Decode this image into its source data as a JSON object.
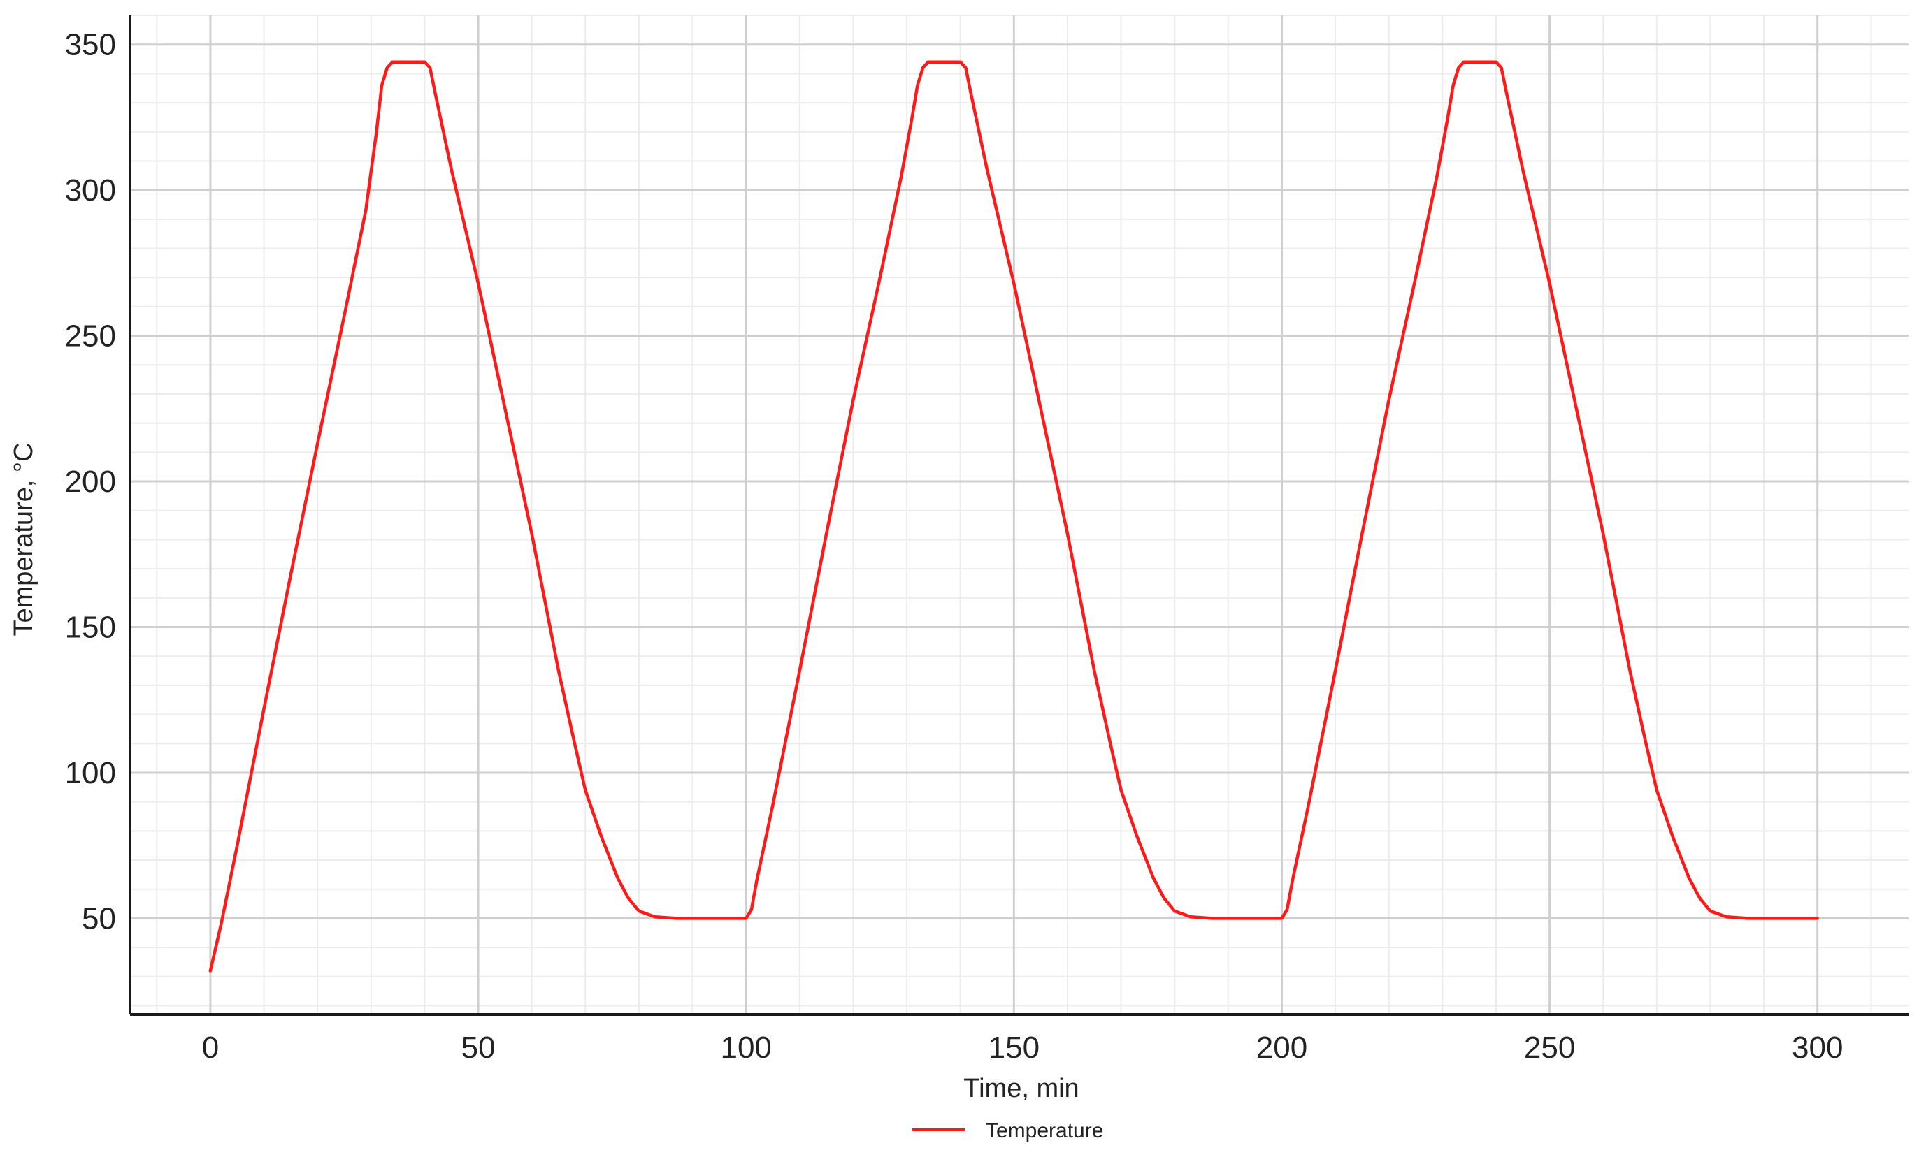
{
  "chart_data": {
    "type": "line",
    "xlabel": "Time, min",
    "ylabel": "Temperature, °C",
    "xlim": [
      -15,
      317
    ],
    "ylim": [
      17,
      360
    ],
    "x_ticks": [
      0,
      50,
      100,
      150,
      200,
      250,
      300
    ],
    "y_ticks": [
      50,
      100,
      150,
      200,
      250,
      300,
      350
    ],
    "x_minor_step": 10,
    "y_minor_step": 10,
    "grid": true,
    "legend_position": "bottom-center",
    "series": [
      {
        "name": "Temperature",
        "color": "#ff1a1a",
        "points": [
          [
            0,
            32
          ],
          [
            2,
            48
          ],
          [
            5,
            75
          ],
          [
            10,
            122
          ],
          [
            15,
            168
          ],
          [
            20,
            213
          ],
          [
            25,
            257
          ],
          [
            29,
            293
          ],
          [
            31,
            320
          ],
          [
            32,
            336
          ],
          [
            33,
            342
          ],
          [
            34,
            344
          ],
          [
            40,
            344
          ],
          [
            41,
            342
          ],
          [
            42,
            333
          ],
          [
            45,
            307
          ],
          [
            50,
            268
          ],
          [
            55,
            225
          ],
          [
            60,
            182
          ],
          [
            65,
            135
          ],
          [
            68,
            110
          ],
          [
            70,
            94
          ],
          [
            73,
            78
          ],
          [
            76,
            64
          ],
          [
            78,
            57
          ],
          [
            80,
            52.5
          ],
          [
            83,
            50.5
          ],
          [
            87,
            50
          ],
          [
            100,
            50
          ],
          [
            101,
            53
          ],
          [
            102,
            63
          ],
          [
            105,
            89
          ],
          [
            110,
            135
          ],
          [
            115,
            182
          ],
          [
            120,
            228
          ],
          [
            125,
            270
          ],
          [
            129,
            305
          ],
          [
            131,
            325
          ],
          [
            132,
            336
          ],
          [
            133,
            342
          ],
          [
            134,
            344
          ],
          [
            140,
            344
          ],
          [
            141,
            342
          ],
          [
            142,
            333
          ],
          [
            145,
            307
          ],
          [
            150,
            268
          ],
          [
            155,
            225
          ],
          [
            160,
            182
          ],
          [
            165,
            135
          ],
          [
            168,
            110
          ],
          [
            170,
            94
          ],
          [
            173,
            78
          ],
          [
            176,
            64
          ],
          [
            178,
            57
          ],
          [
            180,
            52.5
          ],
          [
            183,
            50.5
          ],
          [
            187,
            50
          ],
          [
            200,
            50
          ],
          [
            201,
            53
          ],
          [
            202,
            63
          ],
          [
            205,
            89
          ],
          [
            210,
            135
          ],
          [
            215,
            182
          ],
          [
            220,
            228
          ],
          [
            225,
            270
          ],
          [
            229,
            305
          ],
          [
            231,
            325
          ],
          [
            232,
            336
          ],
          [
            233,
            342
          ],
          [
            234,
            344
          ],
          [
            240,
            344
          ],
          [
            241,
            342
          ],
          [
            242,
            333
          ],
          [
            245,
            307
          ],
          [
            250,
            268
          ],
          [
            255,
            225
          ],
          [
            260,
            182
          ],
          [
            265,
            135
          ],
          [
            268,
            110
          ],
          [
            270,
            94
          ],
          [
            273,
            78
          ],
          [
            276,
            64
          ],
          [
            278,
            57
          ],
          [
            280,
            52.5
          ],
          [
            283,
            50.5
          ],
          [
            287,
            50
          ],
          [
            300,
            50
          ]
        ]
      }
    ]
  },
  "colors": {
    "line": "#ff1a1a",
    "major_grid": "#cfcfcf",
    "minor_grid": "#ececec",
    "axis": "#1a1a1a"
  }
}
